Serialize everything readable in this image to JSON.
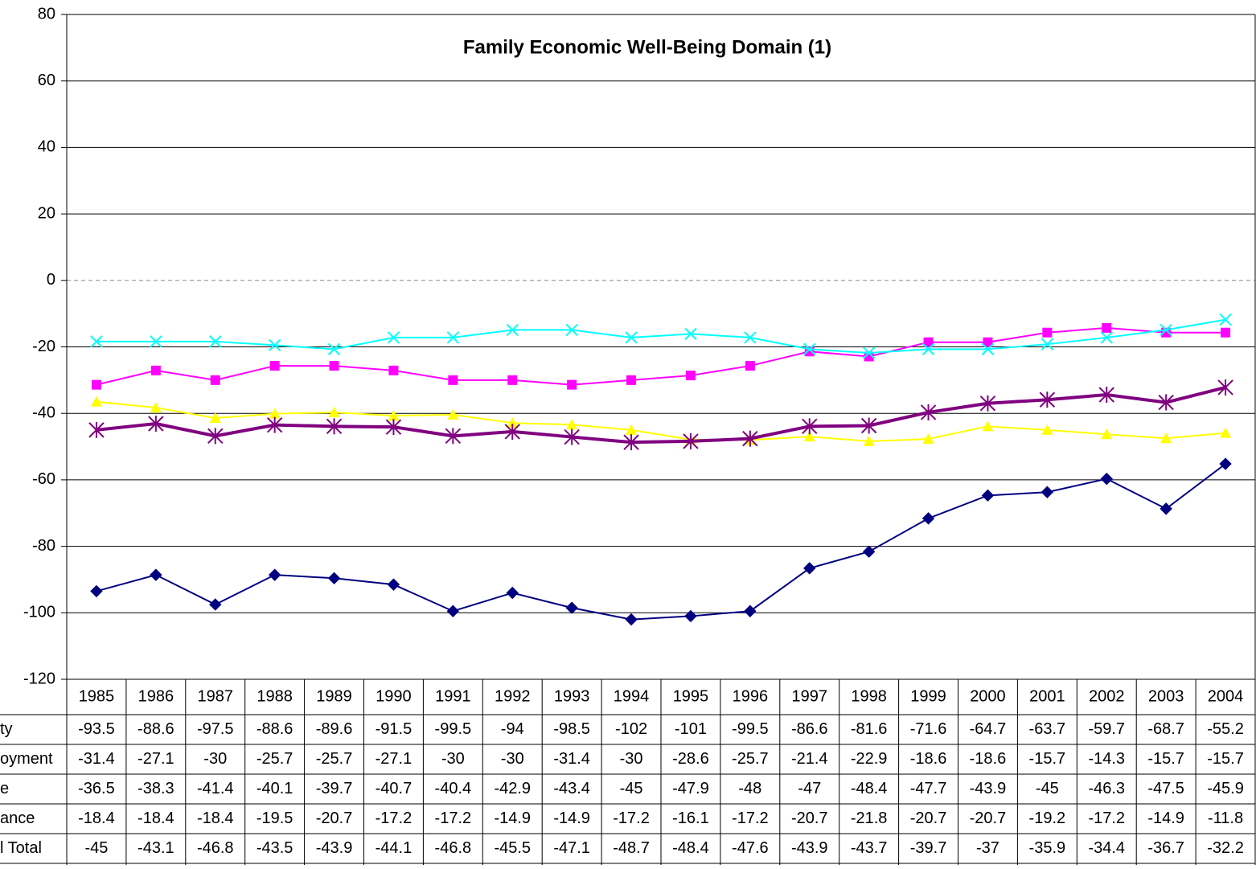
{
  "chart_data": {
    "type": "line",
    "title": "Family Economic Well-Being Domain (1)",
    "categories": [
      "1985",
      "1986",
      "1987",
      "1988",
      "1989",
      "1990",
      "1991",
      "1992",
      "1993",
      "1994",
      "1995",
      "1996",
      "1997",
      "1998",
      "1999",
      "2000",
      "2001",
      "2002",
      "2003",
      "2004"
    ],
    "ylim": [
      -120,
      80
    ],
    "yticks": [
      -120,
      -100,
      -80,
      -60,
      -40,
      -20,
      0,
      20,
      40,
      60,
      80
    ],
    "grid": true,
    "series": [
      {
        "name": "ty",
        "color": "#000080",
        "marker": "diamond",
        "values": [
          -93.5,
          -88.6,
          -97.5,
          -88.6,
          -89.6,
          -91.5,
          -99.5,
          -94,
          -98.5,
          -102,
          -101,
          -99.5,
          -86.6,
          -81.6,
          -71.6,
          -64.7,
          -63.7,
          -59.7,
          -68.7,
          -55.2
        ]
      },
      {
        "name": "oyment",
        "color": "#ff00ff",
        "marker": "square",
        "values": [
          -31.4,
          -27.1,
          -30,
          -25.7,
          -25.7,
          -27.1,
          -30,
          -30,
          -31.4,
          -30,
          -28.6,
          -25.7,
          -21.4,
          -22.9,
          -18.6,
          -18.6,
          -15.7,
          -14.3,
          -15.7,
          -15.7
        ]
      },
      {
        "name": "e",
        "color": "#ffff00",
        "marker": "triangle",
        "values": [
          -36.5,
          -38.3,
          -41.4,
          -40.1,
          -39.7,
          -40.7,
          -40.4,
          -42.9,
          -43.4,
          -45,
          -47.9,
          -48,
          -47,
          -48.4,
          -47.7,
          -43.9,
          -45,
          -46.3,
          -47.5,
          -45.9
        ]
      },
      {
        "name": "ance",
        "color": "#00ffff",
        "marker": "x",
        "values": [
          -18.4,
          -18.4,
          -18.4,
          -19.5,
          -20.7,
          -17.2,
          -17.2,
          -14.9,
          -14.9,
          -17.2,
          -16.1,
          -17.2,
          -20.7,
          -21.8,
          -20.7,
          -20.7,
          -19.2,
          -17.2,
          -14.9,
          -11.8
        ]
      },
      {
        "name": "l Total",
        "color": "#800080",
        "marker": "star",
        "width": 4,
        "values": [
          -45,
          -43.1,
          -46.8,
          -43.5,
          -43.9,
          -44.1,
          -46.8,
          -45.5,
          -47.1,
          -48.7,
          -48.4,
          -47.6,
          -43.9,
          -43.7,
          -39.7,
          -37,
          -35.9,
          -34.4,
          -36.7,
          -32.2
        ]
      }
    ]
  }
}
